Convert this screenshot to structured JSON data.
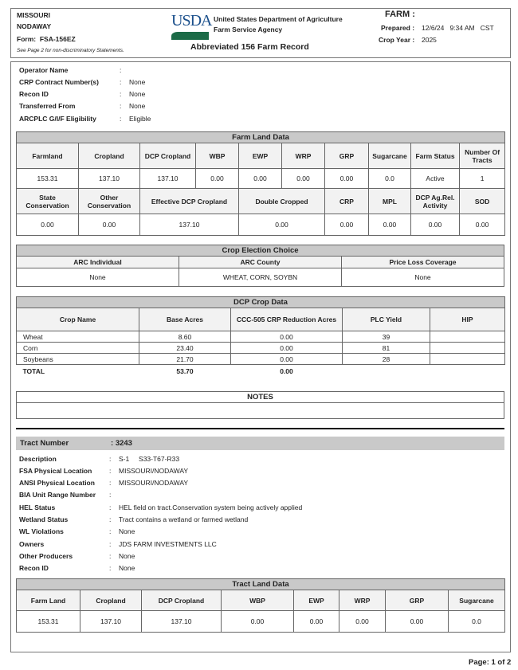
{
  "header": {
    "state": "MISSOURI",
    "county": "NODAWAY",
    "form_label": "Form:",
    "form": "FSA-156EZ",
    "note": "See Page 2 for non-discriminatory Statements.",
    "logo": "USDA",
    "agency1": "United States Department of Agriculture",
    "agency2": "Farm Service Agency",
    "title": "Abbreviated 156 Farm Record",
    "farm_label": "FARM :",
    "prepared_label": "Prepared :",
    "prepared": "12/6/24   9:34 AM   CST",
    "crop_year_label": "Crop Year :",
    "crop_year": "2025"
  },
  "farm_info": [
    {
      "k": "Operator Name",
      "v": ""
    },
    {
      "k": "CRP Contract Number(s)",
      "v": "None"
    },
    {
      "k": "Recon ID",
      "v": "None"
    },
    {
      "k": "Transferred From",
      "v": "None"
    },
    {
      "k": "ARCPLC G/I/F Eligibility",
      "v": "Eligible"
    }
  ],
  "farm_land": {
    "title": "Farm Land Data",
    "h1": [
      "Farmland",
      "Cropland",
      "DCP Cropland",
      "WBP",
      "EWP",
      "WRP",
      "GRP",
      "Sugarcane",
      "Farm Status",
      "Number Of Tracts"
    ],
    "v1": [
      "153.31",
      "137.10",
      "137.10",
      "0.00",
      "0.00",
      "0.00",
      "0.00",
      "0.0",
      "Active",
      "1"
    ],
    "h2": [
      "State Conservation",
      "Other Conservation",
      "Effective DCP Cropland",
      "Double Cropped",
      "CRP",
      "MPL",
      "DCP Ag.Rel. Activity",
      "SOD"
    ],
    "v2": [
      "0.00",
      "0.00",
      "137.10",
      "0.00",
      "0.00",
      "0.00",
      "0.00",
      "0.00"
    ]
  },
  "crop_election": {
    "title": "Crop Election Choice",
    "headers": [
      "ARC Individual",
      "ARC County",
      "Price Loss Coverage"
    ],
    "values": [
      "None",
      "WHEAT, CORN, SOYBN",
      "None"
    ]
  },
  "dcp": {
    "title": "DCP Crop Data",
    "headers": [
      "Crop Name",
      "Base Acres",
      "CCC-505 CRP Reduction Acres",
      "PLC Yield",
      "HIP"
    ],
    "rows": [
      [
        "Wheat",
        "8.60",
        "0.00",
        "39",
        ""
      ],
      [
        "Corn",
        "23.40",
        "0.00",
        "81",
        ""
      ],
      [
        "Soybeans",
        "21.70",
        "0.00",
        "28",
        ""
      ]
    ],
    "total": [
      "TOTAL",
      "53.70",
      "0.00"
    ]
  },
  "notes": {
    "title": "NOTES",
    "text": ""
  },
  "tract": {
    "number_label": "Tract Number",
    "number": "3243",
    "info": [
      {
        "k": "Description",
        "v": "S-1     S33-T67-R33"
      },
      {
        "k": "FSA Physical Location",
        "v": "MISSOURI/NODAWAY"
      },
      {
        "k": "ANSI Physical Location",
        "v": "MISSOURI/NODAWAY"
      },
      {
        "k": "BIA Unit Range Number",
        "v": ""
      },
      {
        "k": "HEL Status",
        "v": "HEL field on tract.Conservation system being actively applied"
      },
      {
        "k": "Wetland Status",
        "v": "Tract contains a wetland or farmed wetland"
      },
      {
        "k": "WL Violations",
        "v": "None"
      },
      {
        "k": "Owners",
        "v": "JDS FARM INVESTMENTS LLC"
      },
      {
        "k": "Other Producers",
        "v": "None"
      },
      {
        "k": "Recon ID",
        "v": "None"
      }
    ],
    "land": {
      "title": "Tract Land Data",
      "headers": [
        "Farm Land",
        "Cropland",
        "DCP Cropland",
        "WBP",
        "EWP",
        "WRP",
        "GRP",
        "Sugarcane"
      ],
      "values": [
        "153.31",
        "137.10",
        "137.10",
        "0.00",
        "0.00",
        "0.00",
        "0.00",
        "0.0"
      ]
    }
  },
  "footer": {
    "page": "Page: 1 of 2"
  },
  "colors": {
    "usda_blue": "#1a4f8b",
    "usda_green": "#1c6b47",
    "section_gray": "#c9c9c9"
  }
}
